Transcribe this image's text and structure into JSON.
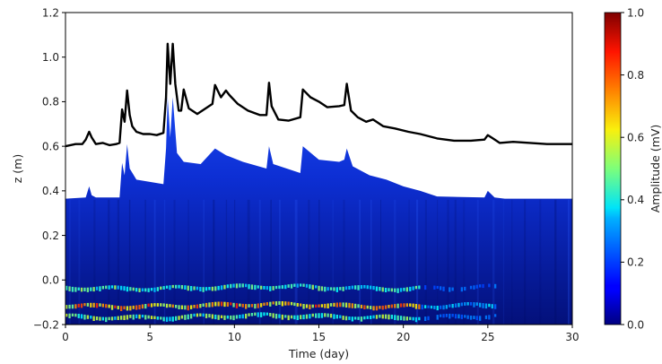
{
  "chart_data": {
    "type": "heatmap",
    "xlabel": "Time (day)",
    "ylabel": "z (m)",
    "xlim": [
      0,
      30
    ],
    "ylim": [
      -0.2,
      1.2
    ],
    "x_ticks": [
      "0",
      "5",
      "10",
      "15",
      "20",
      "25",
      "30"
    ],
    "x_tick_values": [
      0,
      5,
      10,
      15,
      20,
      25,
      30
    ],
    "y_ticks": [
      "−0.2",
      "0.0",
      "0.2",
      "0.4",
      "0.6",
      "0.8",
      "1.0",
      "1.2"
    ],
    "y_tick_values": [
      -0.2,
      0.0,
      0.2,
      0.4,
      0.6,
      0.8,
      1.0,
      1.2
    ],
    "colormap": "jet",
    "colorbar": {
      "label": "Amplitude (mV)",
      "range": [
        0.0,
        1.0
      ],
      "ticks": [
        "0.0",
        "0.2",
        "0.4",
        "0.6",
        "0.8",
        "1.0"
      ],
      "tick_values": [
        0.0,
        0.2,
        0.4,
        0.6,
        0.8,
        1.0
      ]
    },
    "grid": false,
    "series": [
      {
        "type": "line",
        "color": "#000000",
        "x": [
          0,
          0.6,
          1.0,
          1.2,
          1.4,
          1.55,
          1.8,
          2.2,
          2.6,
          3.0,
          3.2,
          3.35,
          3.5,
          3.65,
          3.8,
          3.95,
          4.2,
          4.6,
          5.0,
          5.4,
          5.8,
          5.95,
          6.05,
          6.2,
          6.35,
          6.5,
          6.7,
          6.85,
          7.0,
          7.3,
          7.8,
          8.3,
          8.7,
          8.85,
          9.2,
          9.5,
          9.7,
          10.2,
          10.8,
          11.5,
          11.9,
          12.05,
          12.2,
          12.6,
          13.2,
          13.9,
          14.05,
          14.5,
          15.0,
          15.5,
          16.2,
          16.5,
          16.65,
          16.9,
          17.3,
          17.8,
          18.2,
          18.8,
          19.5,
          20.3,
          21.0,
          22.0,
          23.0,
          24.0,
          24.8,
          25.0,
          25.3,
          25.7,
          26.5,
          27.5,
          28.5,
          29.3,
          30.0
        ],
        "y": [
          0.6,
          0.61,
          0.61,
          0.63,
          0.665,
          0.64,
          0.61,
          0.615,
          0.605,
          0.61,
          0.615,
          0.765,
          0.71,
          0.85,
          0.74,
          0.69,
          0.665,
          0.655,
          0.655,
          0.65,
          0.66,
          0.82,
          1.06,
          0.88,
          1.06,
          0.88,
          0.76,
          0.76,
          0.855,
          0.77,
          0.745,
          0.77,
          0.79,
          0.875,
          0.82,
          0.85,
          0.83,
          0.79,
          0.76,
          0.74,
          0.74,
          0.885,
          0.78,
          0.72,
          0.715,
          0.73,
          0.855,
          0.82,
          0.8,
          0.775,
          0.78,
          0.785,
          0.88,
          0.76,
          0.73,
          0.71,
          0.72,
          0.69,
          0.68,
          0.665,
          0.655,
          0.635,
          0.625,
          0.625,
          0.63,
          0.65,
          0.635,
          0.615,
          0.62,
          0.615,
          0.61,
          0.61,
          0.61
        ]
      }
    ],
    "heatmap_bands": [
      {
        "z": -0.035,
        "amplitude": 0.55
      },
      {
        "z": -0.115,
        "amplitude": 0.85
      },
      {
        "z": -0.165,
        "amplitude": 0.6
      }
    ],
    "backscatter_top": {
      "x": [
        0,
        1.2,
        1.4,
        1.55,
        1.8,
        3.2,
        3.35,
        3.5,
        3.65,
        3.8,
        4.2,
        5.8,
        5.95,
        6.05,
        6.2,
        6.35,
        6.6,
        7.0,
        8.0,
        8.85,
        9.5,
        10.5,
        11.9,
        12.05,
        12.3,
        13.9,
        14.05,
        15.0,
        16.2,
        16.5,
        16.65,
        17.0,
        18.0,
        19.0,
        20.0,
        21.0,
        22.0,
        24.8,
        25.0,
        25.4,
        26.0,
        30.0
      ],
      "z": [
        0.365,
        0.37,
        0.42,
        0.38,
        0.37,
        0.37,
        0.525,
        0.47,
        0.61,
        0.5,
        0.45,
        0.43,
        0.59,
        0.82,
        0.64,
        0.82,
        0.57,
        0.53,
        0.52,
        0.59,
        0.56,
        0.53,
        0.5,
        0.6,
        0.52,
        0.48,
        0.6,
        0.54,
        0.53,
        0.54,
        0.59,
        0.51,
        0.47,
        0.45,
        0.42,
        0.4,
        0.375,
        0.37,
        0.4,
        0.37,
        0.365,
        0.365
      ]
    }
  }
}
